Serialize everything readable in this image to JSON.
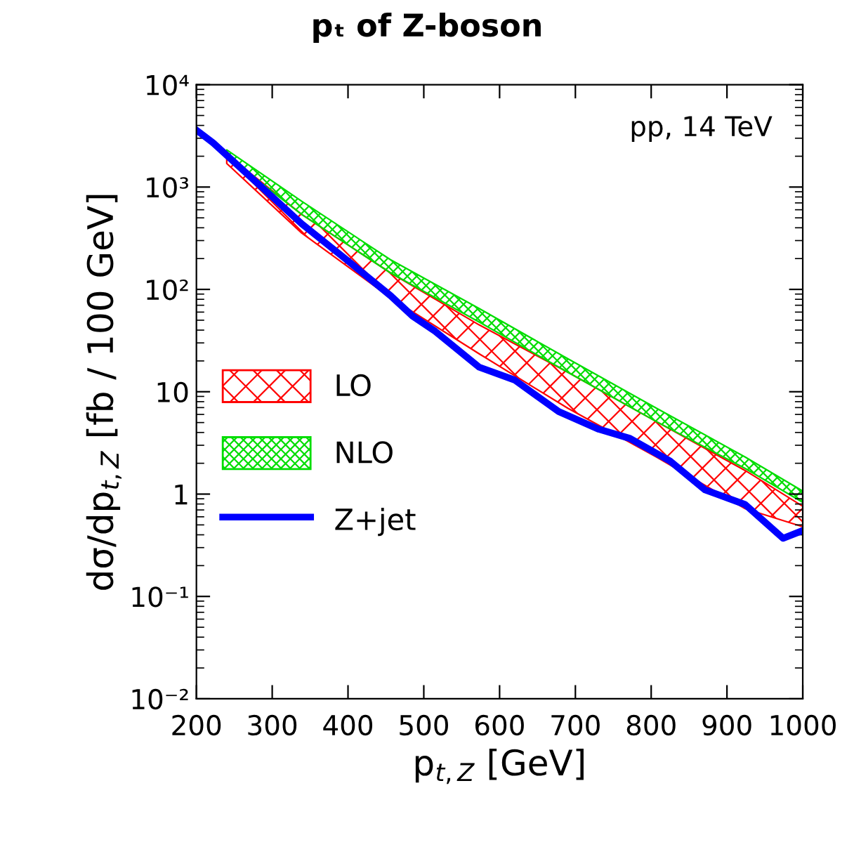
{
  "chart_data": {
    "type": "line",
    "title": "pₜ of Z-boson",
    "xlabel": "p$_{t,Z}$ [GeV]",
    "ylabel": "dσ/dp$_{t,Z}$ [fb / 100 GeV]",
    "annotations": [
      "pp, 14 TeV"
    ],
    "log": "y",
    "xlim": [
      200,
      1000
    ],
    "ylim": [
      0.01,
      10000
    ],
    "xticks": [
      200,
      300,
      400,
      500,
      600,
      700,
      800,
      900,
      1000
    ],
    "yticks": [
      {
        "value": 0.01,
        "label": "10⁻²"
      },
      {
        "value": 0.1,
        "label": "10⁻¹"
      },
      1,
      10,
      {
        "value": 100,
        "label": "10²"
      },
      {
        "value": 1000,
        "label": "10³"
      },
      {
        "value": 10000,
        "label": "10⁴"
      }
    ],
    "grid": false,
    "legend": "center left",
    "series": [
      {
        "name": "LO",
        "type": "area",
        "color": "#ff0000",
        "x": [
          240,
          339,
          456,
          573,
          690,
          807,
          924,
          1000
        ],
        "values": [
          null,
          null,
          null,
          null,
          null,
          null,
          null,
          null
        ],
        "lower": [
          1700,
          355,
          83,
          23.5,
          6.9,
          2.3,
          0.72,
          0.48
        ],
        "upper": [
          2090,
          540,
          145,
          45,
          15.5,
          5.1,
          1.7,
          0.76
        ]
      },
      {
        "name": "NLO",
        "type": "area",
        "color": "#00dd00",
        "x": [
          240,
          339,
          456,
          573,
          690,
          807,
          924,
          1000
        ],
        "values": [
          null,
          null,
          null,
          null,
          null,
          null,
          null,
          null
        ],
        "lower": [
          2000,
          540,
          145,
          48,
          15.5,
          5.1,
          1.78,
          0.83
        ],
        "upper": [
          2310,
          725,
          195,
          65,
          21,
          6.9,
          2.3,
          1.07
        ]
      },
      {
        "name": "Z+jet",
        "color": "#0000ff",
        "x": [
          200,
          222,
          281,
          339,
          398,
          456,
          485,
          515,
          544,
          573,
          620,
          678,
          731,
          772,
          825,
          871,
          924,
          974,
          1000
        ],
        "values": [
          3600,
          2700,
          1080,
          437,
          195,
          87,
          55,
          39,
          26,
          17.4,
          13,
          6.4,
          4.3,
          3.5,
          2.1,
          1.1,
          0.79,
          0.37,
          0.44
        ]
      }
    ]
  }
}
